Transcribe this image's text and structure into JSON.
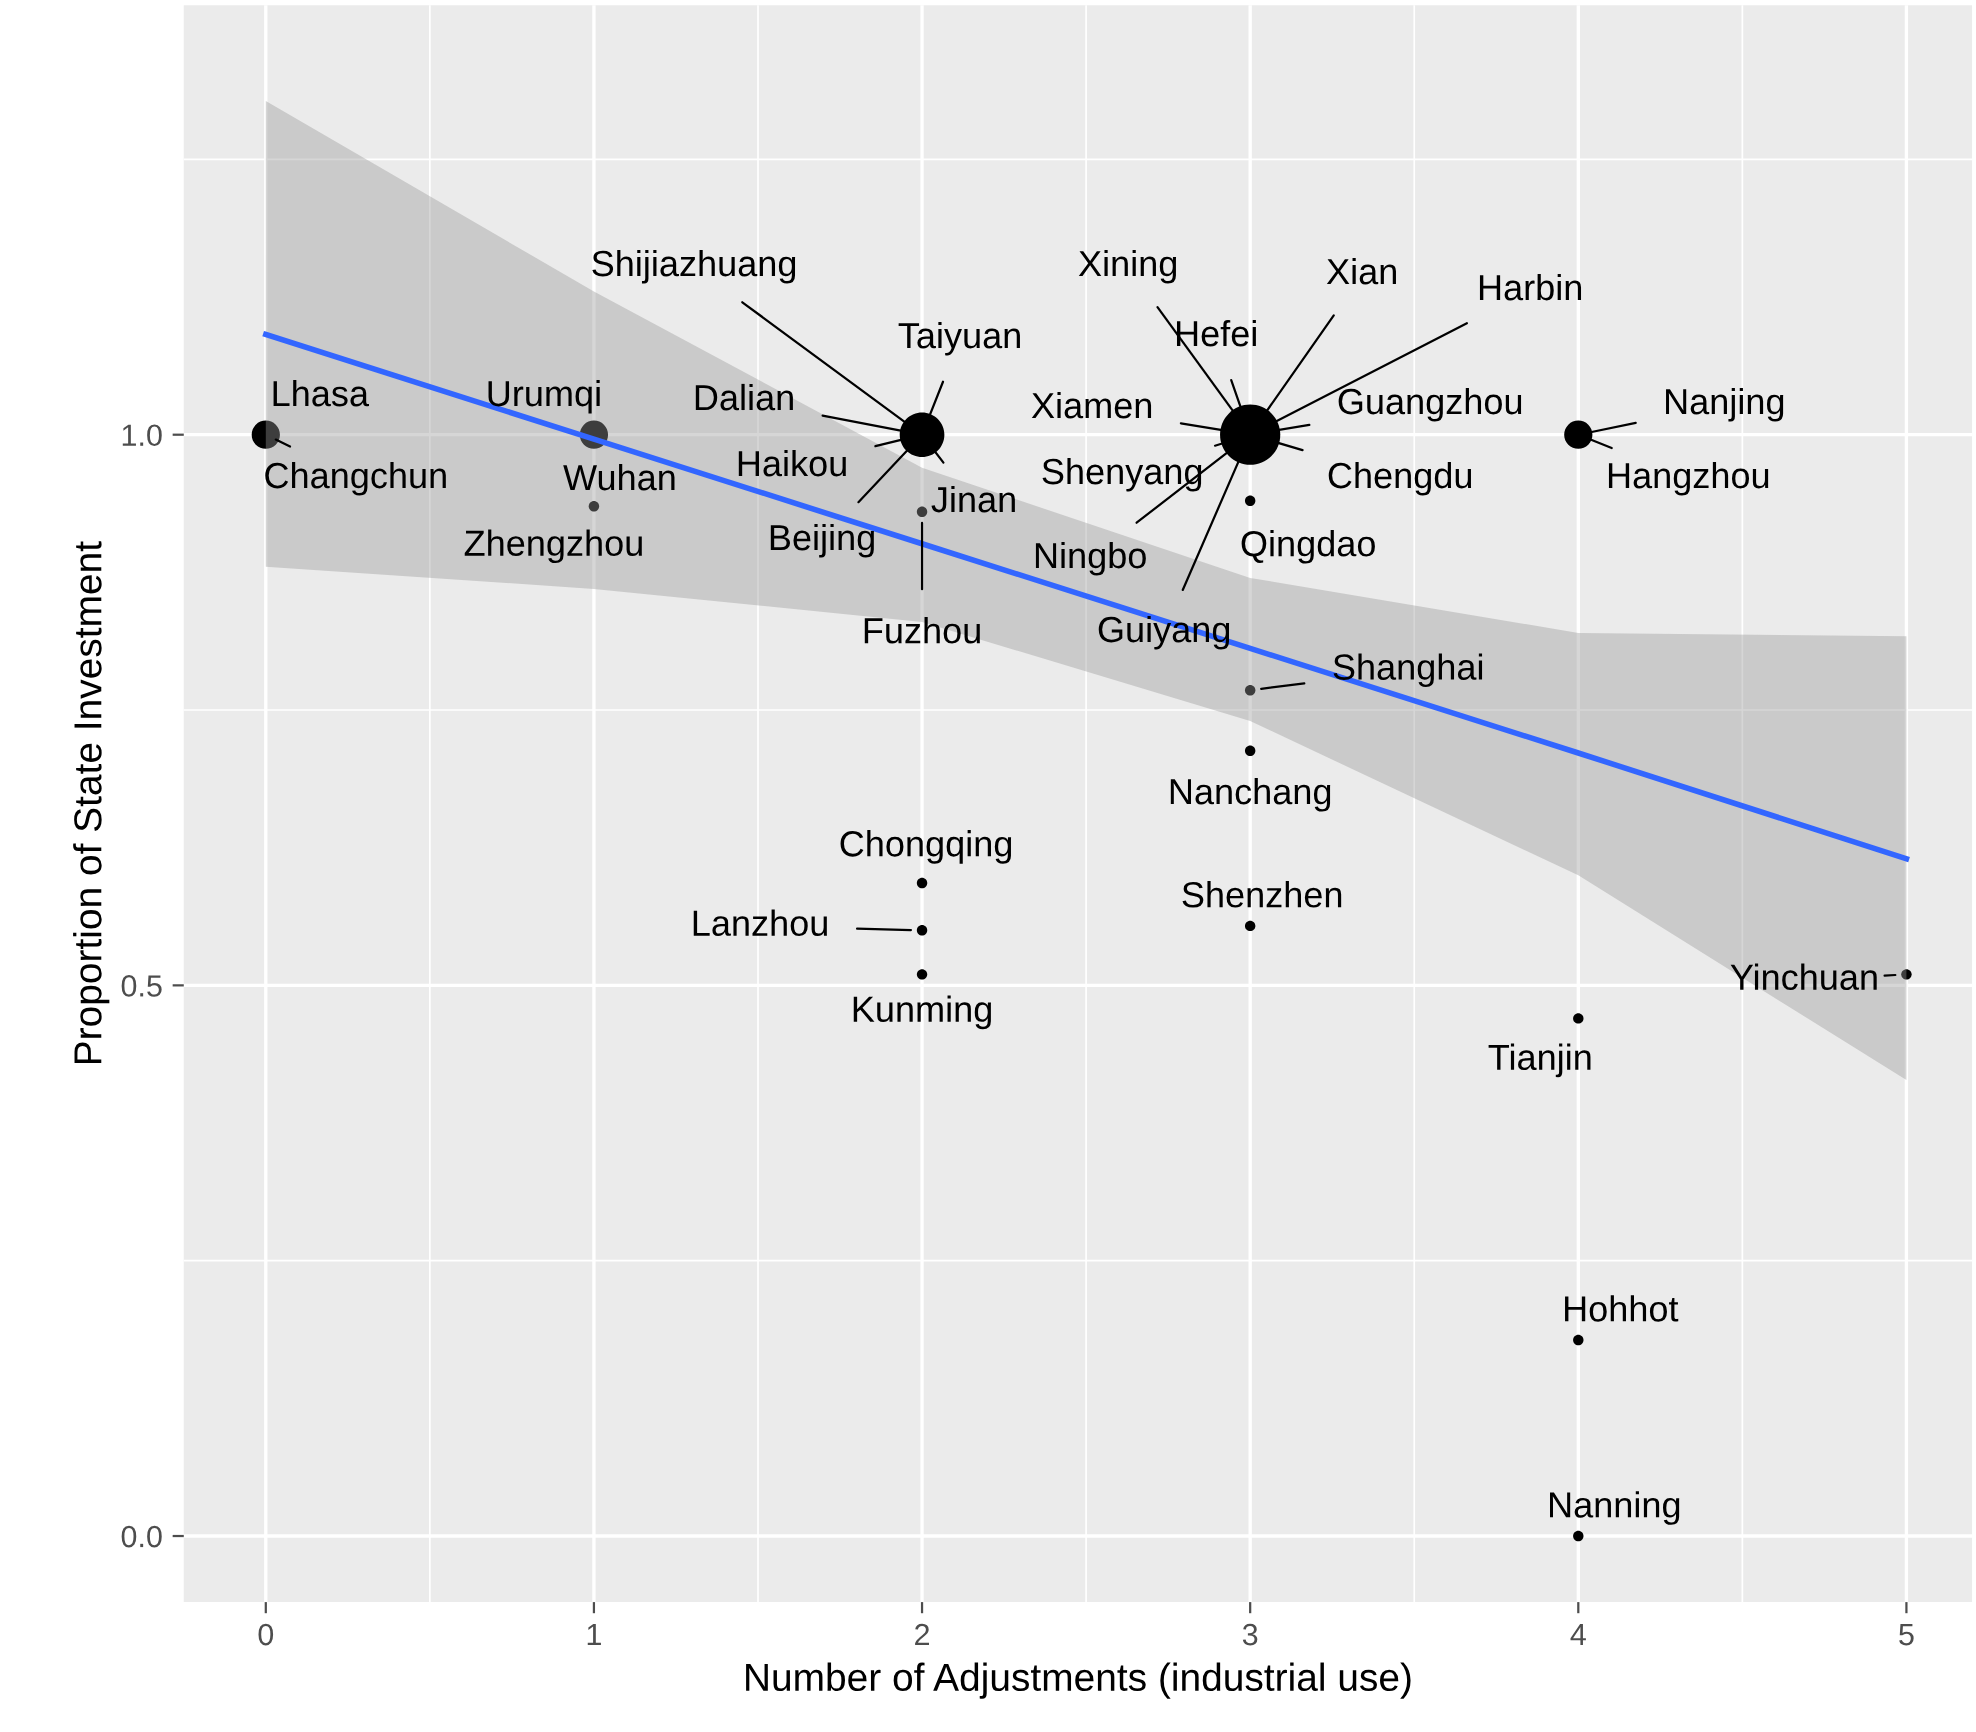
{
  "chart_data": {
    "type": "bubble",
    "xlabel": "Number of Adjustments (industrial use)",
    "ylabel": "Proportion of State Investment",
    "xlim": [
      -0.25,
      5.2
    ],
    "ylim": [
      -0.06,
      1.39
    ],
    "xticks": [
      0,
      1,
      2,
      3,
      4,
      5
    ],
    "yticks": [
      {
        "value": 0,
        "label": "0.0"
      },
      {
        "value": 0.5,
        "label": "0.5"
      },
      {
        "value": 1,
        "label": "1.0"
      }
    ],
    "grid": true,
    "legend": false,
    "series": [
      {
        "type": "bubble",
        "color": "#000000",
        "x": [
          0,
          1,
          1,
          2,
          2,
          2,
          2,
          2,
          3,
          3,
          3,
          3,
          3,
          4,
          4,
          4,
          4,
          5
        ],
        "values": [
          1.0,
          1.0,
          0.935,
          1.0,
          0.93,
          0.593,
          0.55,
          0.51,
          1.0,
          0.94,
          0.768,
          0.713,
          0.554,
          1.0,
          0.47,
          0.178,
          0.0,
          0.51
        ],
        "sizes": [
          0.22,
          0.22,
          0.03,
          0.55,
          0.03,
          0.03,
          0.03,
          0.03,
          1,
          0.03,
          0.03,
          0.03,
          0.03,
          0.22,
          0.03,
          0.03,
          0.03,
          0.03
        ]
      },
      {
        "type": "line",
        "color": "#3366ff",
        "x": [
          0,
          1,
          2,
          3,
          4,
          5
        ],
        "values": [
          1.091,
          0.996,
          0.901,
          0.806,
          0.711,
          0.615
        ],
        "lower": [
          0.88,
          0.86,
          0.83,
          0.74,
          0.6,
          0.414
        ],
        "upper": [
          1.303,
          1.13,
          0.97,
          0.87,
          0.82,
          0.817
        ]
      }
    ],
    "annotations": [
      {
        "text": "Lhasa",
        "x": 0,
        "y": 1.0
      },
      {
        "text": "Changchun",
        "x": 0,
        "y": 1.0
      },
      {
        "text": "Urumqi",
        "x": 1,
        "y": 1.0
      },
      {
        "text": "Wuhan",
        "x": 1,
        "y": 1.0
      },
      {
        "text": "Zhengzhou",
        "x": 1,
        "y": 0.935
      },
      {
        "text": "Shijiazhuang",
        "x": 2,
        "y": 1.0
      },
      {
        "text": "Taiyuan",
        "x": 2,
        "y": 1.0
      },
      {
        "text": "Dalian",
        "x": 2,
        "y": 1.0
      },
      {
        "text": "Haikou",
        "x": 2,
        "y": 1.0
      },
      {
        "text": "Beijing",
        "x": 2,
        "y": 1.0
      },
      {
        "text": "Jinan",
        "x": 2,
        "y": 1.0
      },
      {
        "text": "Fuzhou",
        "x": 2,
        "y": 0.93
      },
      {
        "text": "Xining",
        "x": 3,
        "y": 1.0
      },
      {
        "text": "Hefei",
        "x": 3,
        "y": 1.0
      },
      {
        "text": "Xian",
        "x": 3,
        "y": 1.0
      },
      {
        "text": "Harbin",
        "x": 3,
        "y": 1.0
      },
      {
        "text": "Xiamen",
        "x": 3,
        "y": 1.0
      },
      {
        "text": "Guangzhou",
        "x": 3,
        "y": 1.0
      },
      {
        "text": "Shenyang",
        "x": 3,
        "y": 1.0
      },
      {
        "text": "Chengdu",
        "x": 3,
        "y": 1.0
      },
      {
        "text": "Ningbo",
        "x": 3,
        "y": 1.0
      },
      {
        "text": "Guiyang",
        "x": 3,
        "y": 1.0
      },
      {
        "text": "Qingdao",
        "x": 3,
        "y": 0.94
      },
      {
        "text": "Shanghai",
        "x": 3,
        "y": 0.768
      },
      {
        "text": "Nanchang",
        "x": 3,
        "y": 0.713
      },
      {
        "text": "Shenzhen",
        "x": 3,
        "y": 0.554
      },
      {
        "text": "Chongqing",
        "x": 2,
        "y": 0.593
      },
      {
        "text": "Lanzhou",
        "x": 2,
        "y": 0.55
      },
      {
        "text": "Kunming",
        "x": 2,
        "y": 0.51
      },
      {
        "text": "Nanjing",
        "x": 4,
        "y": 1.0
      },
      {
        "text": "Hangzhou",
        "x": 4,
        "y": 1.0
      },
      {
        "text": "Tianjin",
        "x": 4,
        "y": 0.47
      },
      {
        "text": "Yinchuan",
        "x": 5,
        "y": 0.51
      },
      {
        "text": "Hohhot",
        "x": 4,
        "y": 0.178
      },
      {
        "text": "Nanning",
        "x": 4,
        "y": 0.0
      }
    ]
  }
}
